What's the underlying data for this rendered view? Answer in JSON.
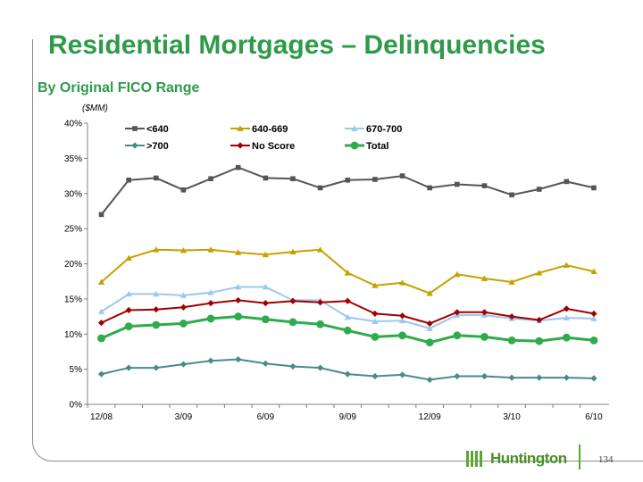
{
  "slide": {
    "title": "Residential Mortgages – Delinquencies",
    "subtitle": "By Original FICO Range",
    "page_number": "134",
    "logo_text": "Huntington"
  },
  "chart_data": {
    "type": "line",
    "units_label": "($MM)",
    "x": [
      "12/08",
      "1/09",
      "2/09",
      "3/09",
      "4/09",
      "5/09",
      "6/09",
      "7/09",
      "8/09",
      "9/09",
      "10/09",
      "11/09",
      "12/09",
      "1/10",
      "2/10",
      "3/10",
      "4/10",
      "5/10",
      "6/10"
    ],
    "x_tick_labels": [
      "12/08",
      "3/09",
      "6/09",
      "9/09",
      "12/09",
      "3/10",
      "6/10"
    ],
    "y_tick_labels": [
      "0%",
      "5%",
      "10%",
      "15%",
      "20%",
      "25%",
      "30%",
      "35%",
      "40%"
    ],
    "ylim": [
      0,
      40
    ],
    "legend_position": "top",
    "series": [
      {
        "name": "<640",
        "color": "#555555",
        "marker": "square",
        "values": [
          27.0,
          31.9,
          32.2,
          30.5,
          32.1,
          33.7,
          32.2,
          32.1,
          30.8,
          31.9,
          32.0,
          32.5,
          30.8,
          31.3,
          31.1,
          29.8,
          30.6,
          31.7,
          30.8
        ]
      },
      {
        "name": "640-669",
        "color": "#c8a000",
        "marker": "triangle",
        "values": [
          17.4,
          20.8,
          22.0,
          21.9,
          22.0,
          21.6,
          21.3,
          21.7,
          22.0,
          18.7,
          16.9,
          17.3,
          15.8,
          18.5,
          17.9,
          17.4,
          18.7,
          19.8,
          18.9
        ]
      },
      {
        "name": "670-700",
        "color": "#9cc8ee",
        "marker": "triangle",
        "values": [
          13.2,
          15.7,
          15.7,
          15.5,
          15.9,
          16.7,
          16.7,
          14.8,
          14.8,
          12.4,
          11.8,
          11.9,
          10.8,
          12.7,
          12.7,
          12.2,
          11.9,
          12.3,
          12.2
        ]
      },
      {
        "name": ">700",
        "color": "#4a8a8a",
        "marker": "diamond",
        "values": [
          4.3,
          5.2,
          5.2,
          5.7,
          6.2,
          6.4,
          5.8,
          5.4,
          5.2,
          4.3,
          4.0,
          4.2,
          3.5,
          4.0,
          4.0,
          3.8,
          3.8,
          3.8,
          3.7
        ]
      },
      {
        "name": "No Score",
        "color": "#a00000",
        "marker": "diamond",
        "values": [
          11.6,
          13.4,
          13.5,
          13.8,
          14.4,
          14.8,
          14.4,
          14.7,
          14.5,
          14.7,
          12.9,
          12.6,
          11.5,
          13.1,
          13.1,
          12.5,
          12.0,
          13.6,
          12.9
        ]
      },
      {
        "name": "Total",
        "color": "#2eab4a",
        "marker": "circle",
        "values": [
          9.4,
          11.1,
          11.3,
          11.5,
          12.2,
          12.5,
          12.1,
          11.7,
          11.4,
          10.5,
          9.6,
          9.8,
          8.8,
          9.8,
          9.6,
          9.1,
          9.0,
          9.5,
          9.1
        ]
      }
    ]
  }
}
